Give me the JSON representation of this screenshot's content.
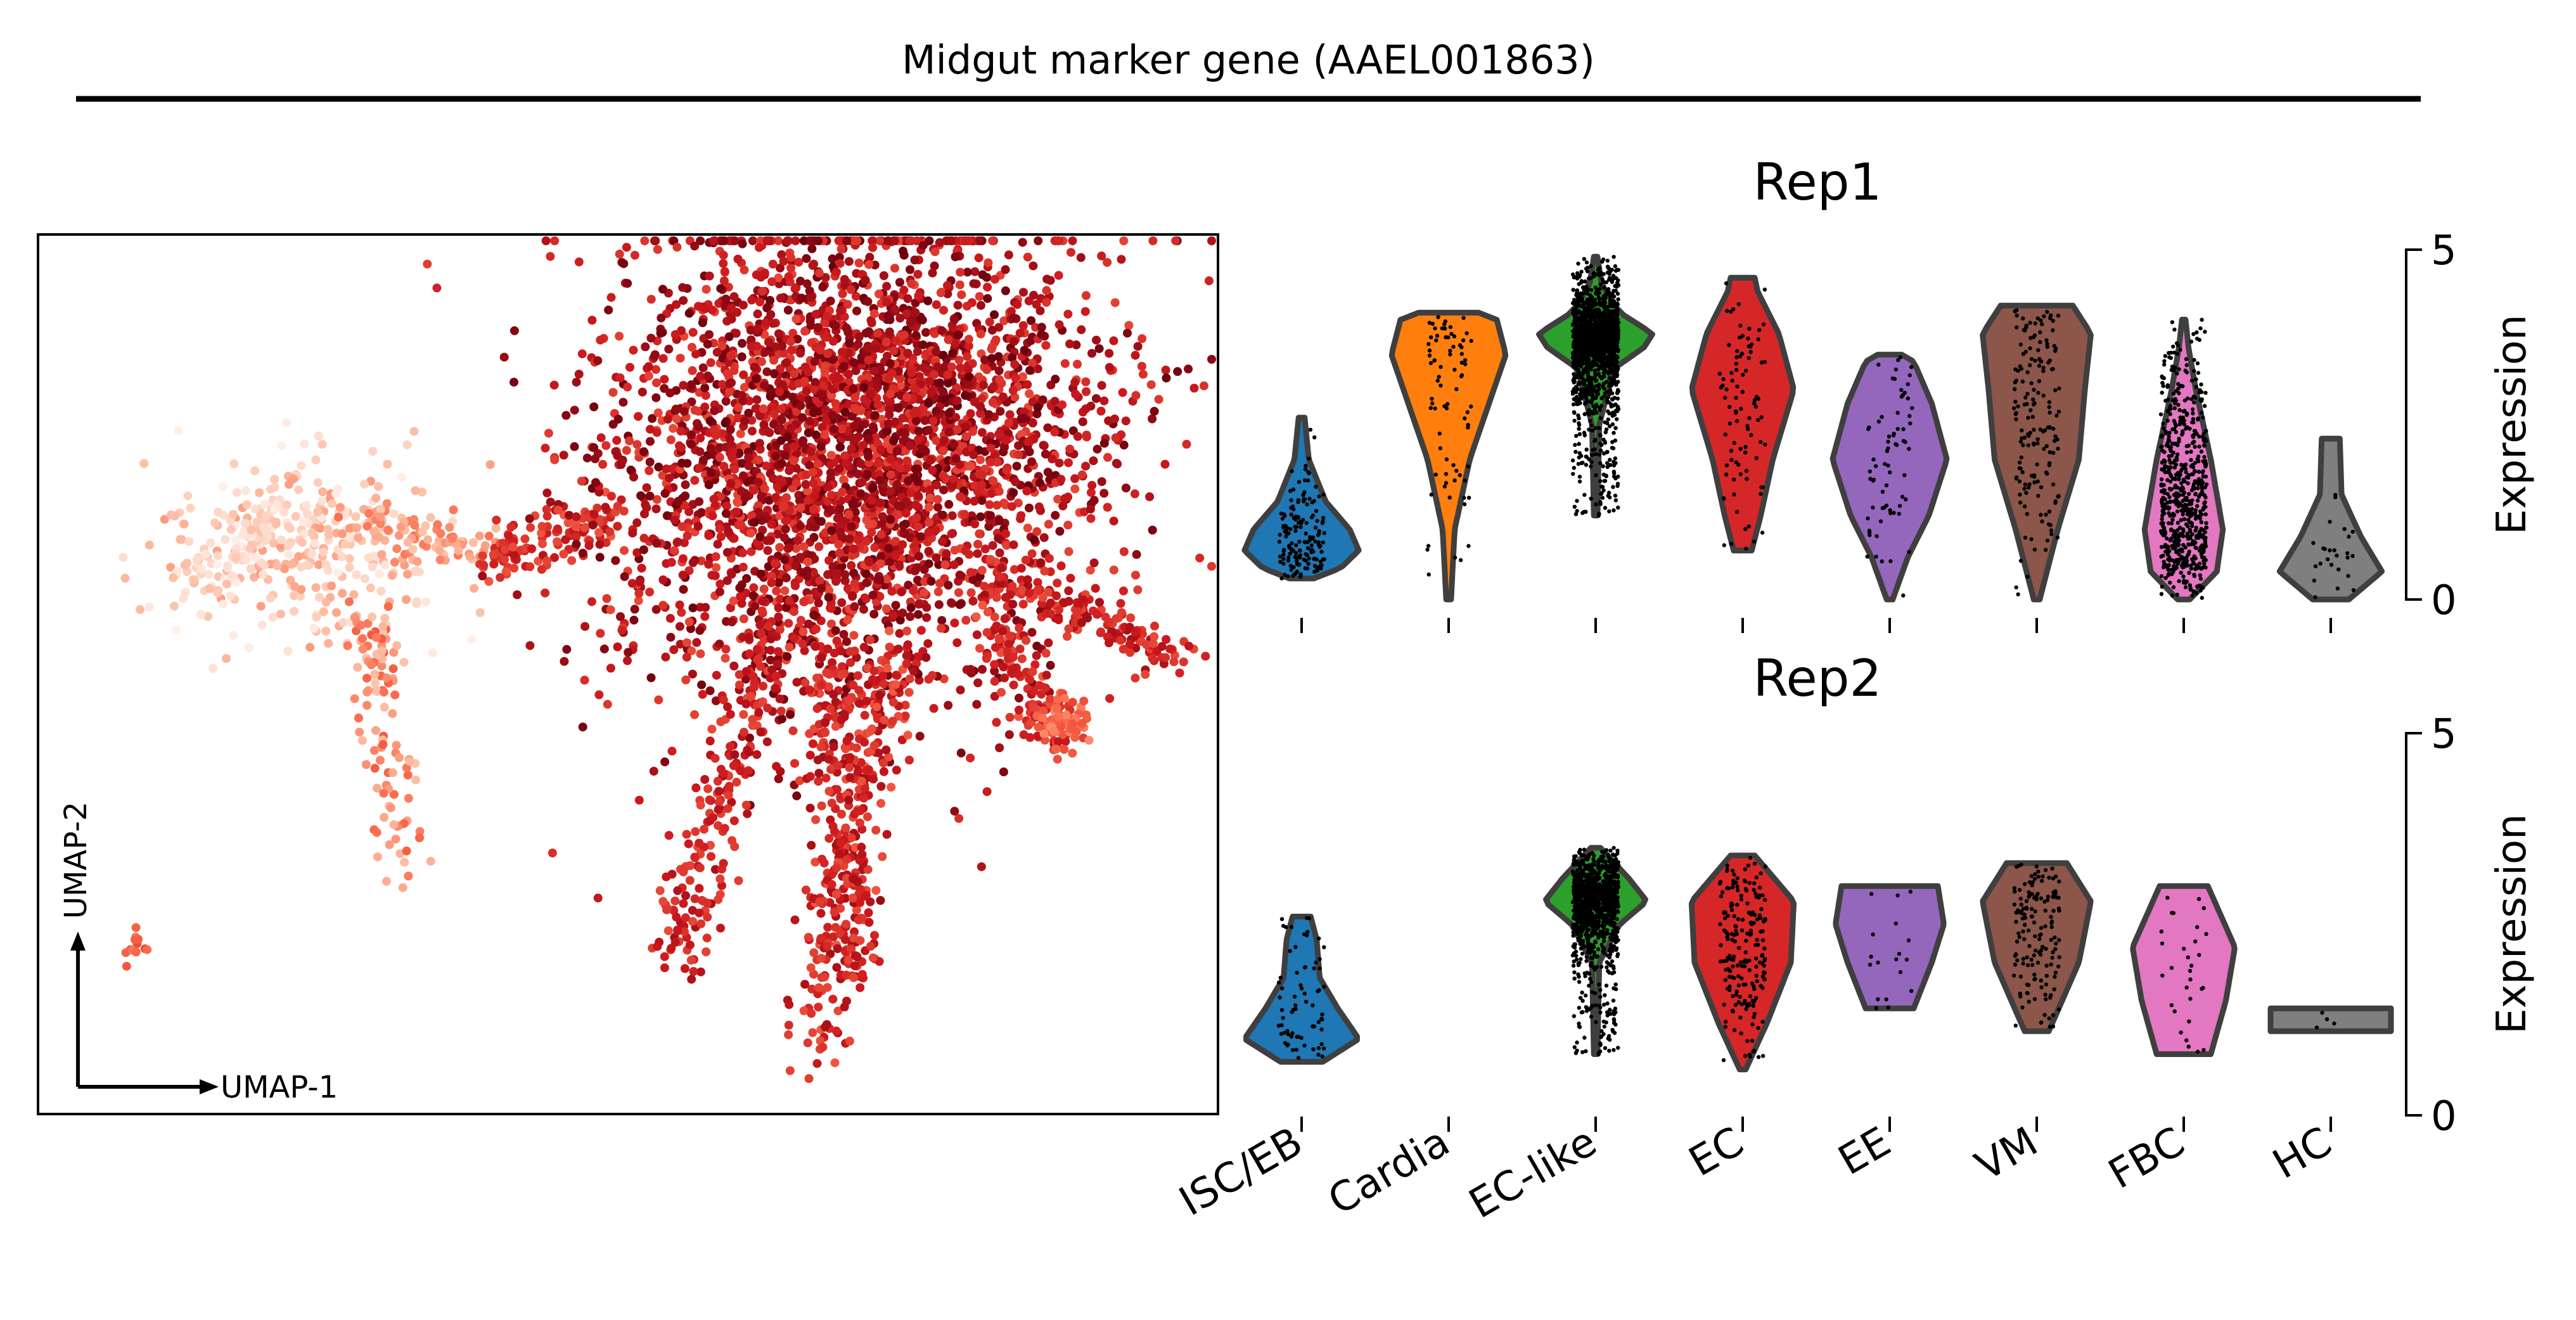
{
  "figure": {
    "title": "Midgut marker gene (AAEL001863)"
  },
  "umap": {
    "xlabel": "UMAP-1",
    "ylabel": "UMAP-2",
    "colormap": [
      "#fff5f0",
      "#fcbba1",
      "#fb6a4a",
      "#cb181d",
      "#67000d"
    ]
  },
  "chart_data": [
    {
      "type": "violin",
      "title": "Rep1",
      "ylabel": "Expression",
      "ylim": [
        0,
        5
      ],
      "yticks": [
        0,
        5
      ],
      "categories": [
        "ISC/EB",
        "Cardia",
        "EC-like",
        "EC",
        "EE",
        "VM",
        "FBC",
        "HC"
      ],
      "colors": [
        "#1f77b4",
        "#ff7f0e",
        "#2ca02c",
        "#d62728",
        "#9467bd",
        "#8c564b",
        "#e377c2",
        "#7f7f7f"
      ],
      "violins": [
        {
          "category": "ISC/EB",
          "min": 0.3,
          "max": 2.6,
          "widths": [
            [
              0.3,
              0.2
            ],
            [
              0.45,
              0.65
            ],
            [
              0.7,
              0.95
            ],
            [
              1.0,
              0.8
            ],
            [
              1.4,
              0.4
            ],
            [
              2.0,
              0.12
            ],
            [
              2.6,
              0.05
            ]
          ],
          "n_points": 160
        },
        {
          "category": "Cardia",
          "min": 0.0,
          "max": 4.1,
          "widths": [
            [
              0.0,
              0.04
            ],
            [
              1.0,
              0.1
            ],
            [
              2.0,
              0.35
            ],
            [
              3.0,
              0.75
            ],
            [
              3.5,
              0.95
            ],
            [
              4.0,
              0.8
            ],
            [
              4.1,
              0.5
            ]
          ],
          "n_points": 80
        },
        {
          "category": "EC-like",
          "min": 1.2,
          "max": 4.9,
          "widths": [
            [
              1.2,
              0.03
            ],
            [
              2.5,
              0.06
            ],
            [
              3.3,
              0.3
            ],
            [
              3.6,
              0.8
            ],
            [
              3.8,
              0.95
            ],
            [
              4.1,
              0.4
            ],
            [
              4.5,
              0.1
            ],
            [
              4.9,
              0.03
            ]
          ],
          "n_points": 1600
        },
        {
          "category": "EC",
          "min": 0.7,
          "max": 4.6,
          "widths": [
            [
              0.7,
              0.15
            ],
            [
              1.2,
              0.3
            ],
            [
              2.0,
              0.5
            ],
            [
              3.0,
              0.85
            ],
            [
              3.8,
              0.6
            ],
            [
              4.4,
              0.25
            ],
            [
              4.6,
              0.2
            ]
          ],
          "n_points": 90
        },
        {
          "category": "EE",
          "min": 0.0,
          "max": 3.5,
          "widths": [
            [
              0.0,
              0.05
            ],
            [
              0.6,
              0.3
            ],
            [
              1.2,
              0.65
            ],
            [
              2.0,
              0.95
            ],
            [
              2.8,
              0.7
            ],
            [
              3.4,
              0.4
            ],
            [
              3.5,
              0.2
            ]
          ],
          "n_points": 70
        },
        {
          "category": "VM",
          "min": 0.0,
          "max": 4.2,
          "widths": [
            [
              0.0,
              0.05
            ],
            [
              1.0,
              0.35
            ],
            [
              2.0,
              0.7
            ],
            [
              3.0,
              0.8
            ],
            [
              3.8,
              0.9
            ],
            [
              4.2,
              0.6
            ]
          ],
          "n_points": 170
        },
        {
          "category": "FBC",
          "min": 0.0,
          "max": 4.0,
          "widths": [
            [
              0.0,
              0.1
            ],
            [
              0.4,
              0.55
            ],
            [
              1.0,
              0.65
            ],
            [
              2.0,
              0.45
            ],
            [
              3.0,
              0.2
            ],
            [
              3.6,
              0.08
            ],
            [
              4.0,
              0.03
            ]
          ],
          "n_points": 650
        },
        {
          "category": "HC",
          "min": 0.0,
          "max": 2.3,
          "widths": [
            [
              0.0,
              0.3
            ],
            [
              0.4,
              0.85
            ],
            [
              0.9,
              0.5
            ],
            [
              1.5,
              0.18
            ],
            [
              2.3,
              0.15
            ]
          ],
          "n_points": 25
        }
      ]
    },
    {
      "type": "violin",
      "title": "Rep2",
      "ylabel": "Expression",
      "ylim": [
        0,
        5
      ],
      "yticks": [
        0,
        5
      ],
      "categories": [
        "ISC/EB",
        "Cardia",
        "EC-like",
        "EC",
        "EE",
        "VM",
        "FBC",
        "HC"
      ],
      "colors": [
        "#1f77b4",
        "#ff7f0e",
        "#2ca02c",
        "#d62728",
        "#9467bd",
        "#8c564b",
        "#e377c2",
        "#7f7f7f"
      ],
      "violins": [
        {
          "category": "ISC/EB",
          "min": 0.7,
          "max": 2.6,
          "widths": [
            [
              0.7,
              0.35
            ],
            [
              1.0,
              0.95
            ],
            [
              1.4,
              0.6
            ],
            [
              1.8,
              0.3
            ],
            [
              2.3,
              0.25
            ],
            [
              2.6,
              0.15
            ]
          ],
          "n_points": 70
        },
        {
          "category": "Cardia",
          "min": null,
          "max": null,
          "widths": [],
          "n_points": 0
        },
        {
          "category": "EC-like",
          "min": 0.8,
          "max": 3.5,
          "widths": [
            [
              0.8,
              0.03
            ],
            [
              2.0,
              0.06
            ],
            [
              2.5,
              0.4
            ],
            [
              2.8,
              0.85
            ],
            [
              3.1,
              0.55
            ],
            [
              3.5,
              0.08
            ]
          ],
          "n_points": 1100
        },
        {
          "category": "EC",
          "min": 0.6,
          "max": 3.4,
          "widths": [
            [
              0.6,
              0.05
            ],
            [
              1.2,
              0.4
            ],
            [
              2.0,
              0.8
            ],
            [
              2.8,
              0.85
            ],
            [
              3.4,
              0.2
            ]
          ],
          "n_points": 200
        },
        {
          "category": "EE",
          "min": 1.4,
          "max": 3.0,
          "widths": [
            [
              1.4,
              0.4
            ],
            [
              2.0,
              0.7
            ],
            [
              2.5,
              0.9
            ],
            [
              3.0,
              0.8
            ]
          ],
          "n_points": 18
        },
        {
          "category": "VM",
          "min": 1.1,
          "max": 3.3,
          "widths": [
            [
              1.1,
              0.2
            ],
            [
              2.0,
              0.7
            ],
            [
              2.8,
              0.9
            ],
            [
              3.3,
              0.5
            ]
          ],
          "n_points": 150
        },
        {
          "category": "FBC",
          "min": 0.8,
          "max": 3.0,
          "widths": [
            [
              0.8,
              0.45
            ],
            [
              1.5,
              0.7
            ],
            [
              2.2,
              0.85
            ],
            [
              3.0,
              0.4
            ]
          ],
          "n_points": 30
        },
        {
          "category": "HC",
          "min": 1.1,
          "max": 1.4,
          "widths": [
            [
              1.1,
              1.0
            ],
            [
              1.4,
              1.0
            ]
          ],
          "n_points": 4
        }
      ]
    }
  ]
}
